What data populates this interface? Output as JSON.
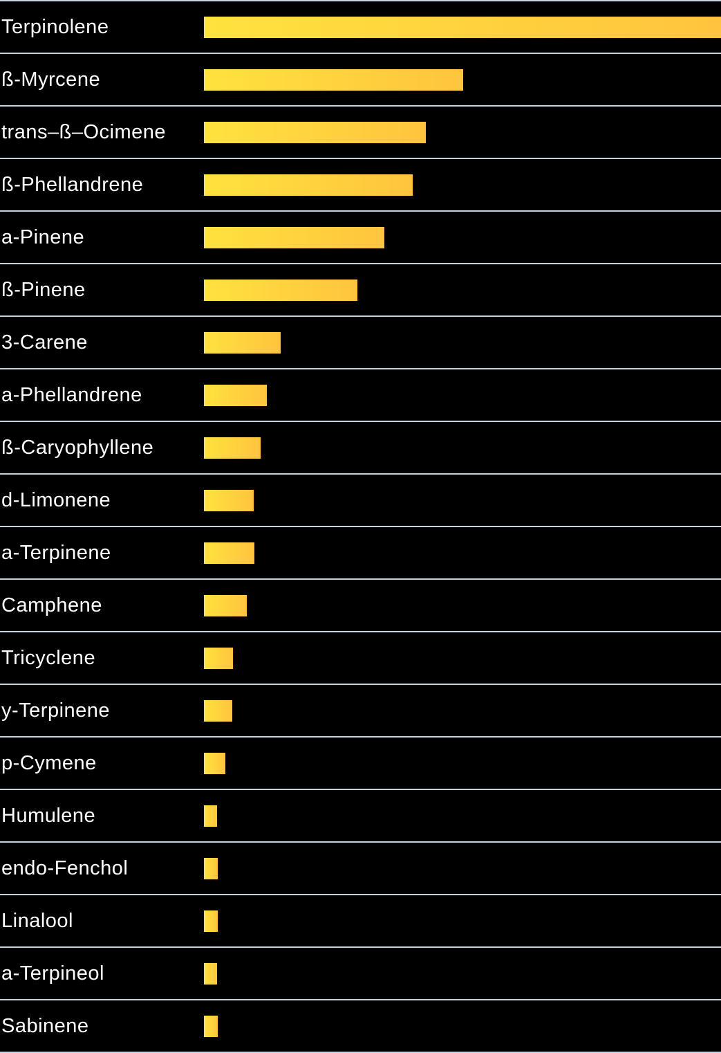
{
  "chart_data": {
    "type": "bar",
    "orientation": "horizontal",
    "title": "",
    "xlabel": "",
    "ylabel": "",
    "legend": false,
    "grid": false,
    "value_axis_shown": false,
    "note": "Terpene profile bar chart; no numeric axis visible, values are bar lengths as percent of the longest bar (Terpinolene = 100)",
    "categories": [
      "Terpinolene",
      "ß-Myrcene",
      "trans–ß–Ocimene",
      "ß-Phellandrene",
      "a-Pinene",
      "ß-Pinene",
      "3-Carene",
      "a-Phellandrene",
      "ß-Caryophyllene",
      "d-Limonene",
      "a-Terpinene",
      "Camphene",
      "Tricyclene",
      "y-Terpinene",
      "p-Cymene",
      "Humulene",
      "endo-Fenchol",
      "Linalool",
      "a-Terpineol",
      "Sabinene"
    ],
    "values_pct_of_max": [
      100,
      50.1,
      42.9,
      40.4,
      34.9,
      29.7,
      14.8,
      12.2,
      11.0,
      9.6,
      9.8,
      8.3,
      5.6,
      5.5,
      4.1,
      2.5,
      2.7,
      2.7,
      2.6,
      2.7
    ]
  },
  "colors": {
    "background": "#000000",
    "bar_gradient_start": "#FFE23E",
    "bar_gradient_end": "#FFC43E",
    "divider_line": "#C8D3E1",
    "label_text": "#FFFFFF"
  }
}
